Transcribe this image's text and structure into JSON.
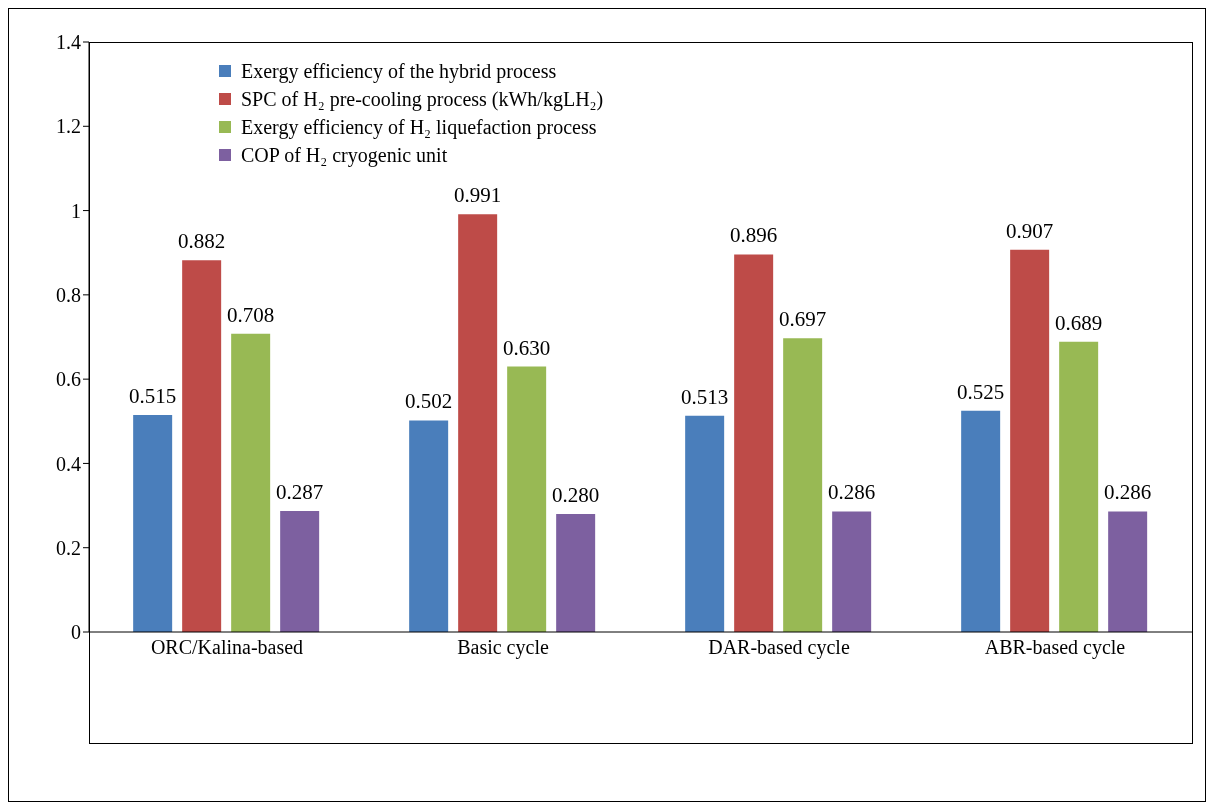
{
  "chart_data": {
    "type": "bar",
    "categories": [
      "ORC/Kalina-based",
      "Basic cycle",
      "DAR-based cycle",
      "ABR-based cycle"
    ],
    "series": [
      {
        "name": "Exergy efficiency of the hybrid process",
        "color": "#4a7ebb",
        "values": [
          0.515,
          0.502,
          0.513,
          0.525
        ],
        "value_labels": [
          "0.515",
          "0.502",
          "0.513",
          "0.525"
        ]
      },
      {
        "name": "SPC of H₂ pre-cooling process (kWh/kgLH₂)",
        "color": "#be4b48",
        "values": [
          0.882,
          0.991,
          0.896,
          0.907
        ],
        "value_labels": [
          "0.882",
          "0.991",
          "0.896",
          "0.907"
        ]
      },
      {
        "name": "Exergy efficiency of H₂ liquefaction process",
        "color": "#98b954",
        "values": [
          0.708,
          0.63,
          0.697,
          0.689
        ],
        "value_labels": [
          "0.708",
          "0.630",
          "0.697",
          "0.689"
        ]
      },
      {
        "name": "COP of H₂ cryogenic unit",
        "color": "#7d60a0",
        "values": [
          0.287,
          0.28,
          0.286,
          0.286
        ],
        "value_labels": [
          "0.287",
          "0.280",
          "0.286",
          "0.286"
        ]
      }
    ],
    "ylim": [
      0,
      1.4
    ],
    "yticks": [
      0,
      0.2,
      0.4,
      0.6,
      0.8,
      1,
      1.2,
      1.4
    ],
    "grid": false,
    "legend": "top left"
  }
}
